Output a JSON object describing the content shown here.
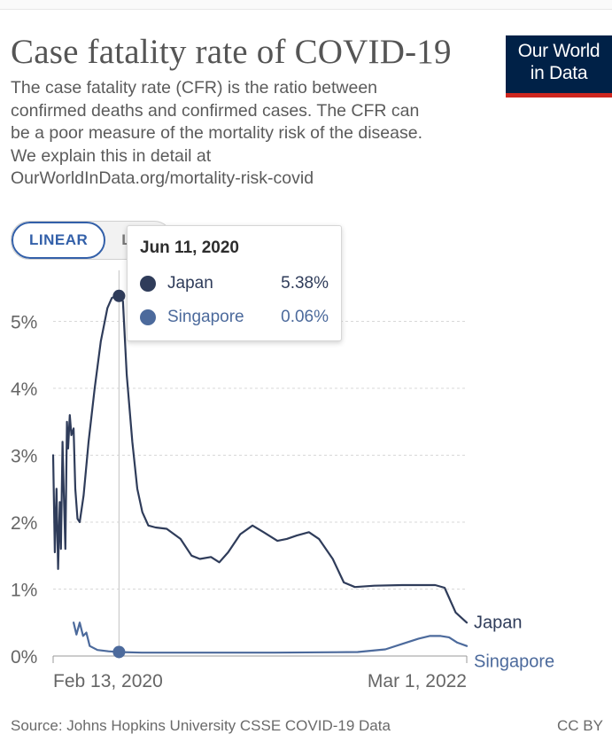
{
  "header": {
    "title": "Case fatality rate of COVID-19",
    "subtitle": "The case fatality rate (CFR) is the ratio between confirmed deaths and confirmed cases. The CFR can be a poor measure of the mortality risk of the disease. We explain this in detail at OurWorldInData.org/mortality-risk-covid"
  },
  "logo": {
    "line1": "Our World",
    "line2": "in Data"
  },
  "scale_toggle": {
    "linear_label": "LINEAR",
    "log_label": "LOG"
  },
  "tooltip": {
    "date": "Jun 11, 2020",
    "rows": [
      {
        "name": "Japan",
        "value": "5.38%"
      },
      {
        "name": "Singapore",
        "value": "0.06%"
      }
    ]
  },
  "footer": {
    "source": "Source: Johns Hopkins University CSSE COVID-19 Data",
    "license": "CC BY"
  },
  "chart_data": {
    "type": "line",
    "title": "Case fatality rate of COVID-19",
    "xlabel": "",
    "ylabel": "",
    "x_unit": "days since Feb 13, 2020",
    "xlim": [
      0,
      747
    ],
    "ylim": [
      0,
      5.5
    ],
    "yticks": [
      0,
      1,
      2,
      3,
      4,
      5
    ],
    "ytick_labels": [
      "0%",
      "1%",
      "2%",
      "3%",
      "4%",
      "5%"
    ],
    "xtick_labels": [
      "Feb 13, 2020",
      "Mar 1, 2022"
    ],
    "grid": "horizontal dashed",
    "legend": "line-end labels",
    "highlight": {
      "x": 119,
      "label": "Jun 11, 2020"
    },
    "series": [
      {
        "name": "Japan",
        "color": "#2f3c5a",
        "points": [
          [
            0,
            3.0
          ],
          [
            3,
            1.55
          ],
          [
            6,
            2.5
          ],
          [
            9,
            1.3
          ],
          [
            12,
            2.3
          ],
          [
            14,
            1.6
          ],
          [
            17,
            3.2
          ],
          [
            19,
            2.5
          ],
          [
            22,
            1.6
          ],
          [
            25,
            3.5
          ],
          [
            27,
            3.1
          ],
          [
            30,
            3.6
          ],
          [
            33,
            3.3
          ],
          [
            37,
            3.4
          ],
          [
            40,
            2.5
          ],
          [
            44,
            2.05
          ],
          [
            48,
            2.0
          ],
          [
            55,
            2.4
          ],
          [
            64,
            3.2
          ],
          [
            75,
            4.0
          ],
          [
            86,
            4.7
          ],
          [
            98,
            5.2
          ],
          [
            106,
            5.35
          ],
          [
            113,
            5.38
          ],
          [
            119,
            5.38
          ],
          [
            126,
            5.3
          ],
          [
            133,
            4.2
          ],
          [
            143,
            3.2
          ],
          [
            152,
            2.5
          ],
          [
            161,
            2.15
          ],
          [
            172,
            1.95
          ],
          [
            185,
            1.92
          ],
          [
            205,
            1.9
          ],
          [
            230,
            1.75
          ],
          [
            250,
            1.5
          ],
          [
            265,
            1.45
          ],
          [
            285,
            1.48
          ],
          [
            300,
            1.4
          ],
          [
            316,
            1.55
          ],
          [
            338,
            1.82
          ],
          [
            360,
            1.95
          ],
          [
            380,
            1.85
          ],
          [
            405,
            1.72
          ],
          [
            422,
            1.75
          ],
          [
            440,
            1.8
          ],
          [
            462,
            1.85
          ],
          [
            480,
            1.75
          ],
          [
            505,
            1.45
          ],
          [
            525,
            1.1
          ],
          [
            545,
            1.03
          ],
          [
            580,
            1.05
          ],
          [
            630,
            1.06
          ],
          [
            690,
            1.06
          ],
          [
            707,
            1.02
          ],
          [
            727,
            0.65
          ],
          [
            747,
            0.5
          ]
        ]
      },
      {
        "name": "Singapore",
        "color": "#4c6a9c",
        "points": [
          [
            37,
            0.5
          ],
          [
            42,
            0.32
          ],
          [
            48,
            0.5
          ],
          [
            54,
            0.3
          ],
          [
            60,
            0.35
          ],
          [
            66,
            0.15
          ],
          [
            80,
            0.09
          ],
          [
            100,
            0.07
          ],
          [
            119,
            0.06
          ],
          [
            160,
            0.05
          ],
          [
            250,
            0.05
          ],
          [
            400,
            0.05
          ],
          [
            550,
            0.06
          ],
          [
            600,
            0.1
          ],
          [
            630,
            0.18
          ],
          [
            660,
            0.26
          ],
          [
            680,
            0.3
          ],
          [
            700,
            0.3
          ],
          [
            715,
            0.28
          ],
          [
            730,
            0.2
          ],
          [
            747,
            0.15
          ]
        ]
      }
    ]
  }
}
